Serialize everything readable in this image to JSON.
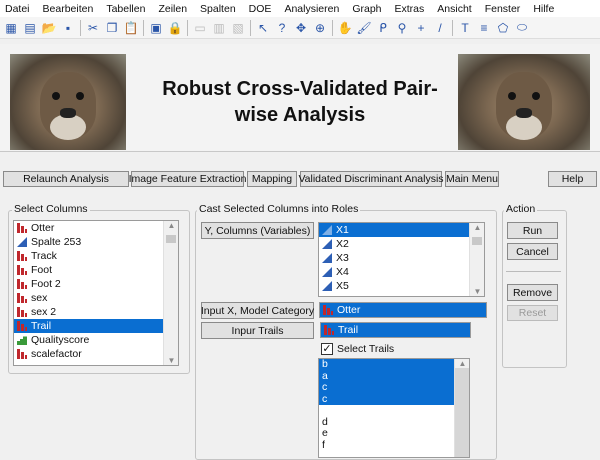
{
  "menu": [
    "Datei",
    "Bearbeiten",
    "Tabellen",
    "Zeilen",
    "Spalten",
    "DOE",
    "Analysieren",
    "Graph",
    "Extras",
    "Ansicht",
    "Fenster",
    "Hilfe"
  ],
  "toolbar_icons": [
    "new-table-icon",
    "new-script-icon",
    "open-icon",
    "save-icon",
    "cut-icon",
    "copy-icon",
    "paste-icon",
    "formula-icon",
    "lock-icon",
    "row-icon",
    "column-icon",
    "filter-icon",
    "arrow-icon",
    "help-icon",
    "crosshair-icon",
    "target-icon",
    "hand-icon",
    "brush-icon",
    "lasso-icon",
    "magnifier-icon",
    "plus-icon",
    "line-icon",
    "textbox-icon",
    "lines-icon",
    "polygon-icon",
    "ellipse-icon"
  ],
  "banner": {
    "title": "Robust Cross-Validated Pair-wise Analysis"
  },
  "nav_buttons": [
    "Relaunch Analysis",
    "Image Feature Extraction",
    "Mapping",
    "Validated Discriminant Analysis",
    "Main Menu"
  ],
  "help": "Help",
  "select_columns": {
    "label": "Select Columns",
    "items": [
      {
        "name": "Otter",
        "type": "nominal"
      },
      {
        "name": "Spalte 253",
        "type": "continuous"
      },
      {
        "name": "Track",
        "type": "nominal"
      },
      {
        "name": "Foot",
        "type": "nominal"
      },
      {
        "name": "Foot 2",
        "type": "nominal"
      },
      {
        "name": "sex",
        "type": "nominal"
      },
      {
        "name": "sex 2",
        "type": "nominal"
      },
      {
        "name": "Trail",
        "type": "nominal",
        "selected": true
      },
      {
        "name": "Qualityscore",
        "type": "ordinal"
      },
      {
        "name": "scalefactor",
        "type": "nominal"
      }
    ]
  },
  "roles": {
    "label": "Cast Selected Columns into Roles",
    "y_button": "Y, Columns (Variables)",
    "y_items": [
      {
        "name": "X1",
        "selected": true
      },
      {
        "name": "X2"
      },
      {
        "name": "X3"
      },
      {
        "name": "X4"
      },
      {
        "name": "X5"
      }
    ],
    "x_button": "Input X, Model Category",
    "x_value": "Otter",
    "trails_button": "Inpur Trails",
    "trails_value": "Trail",
    "select_trails_label": "Select Trails",
    "select_trails_checked": true,
    "trail_items": [
      {
        "name": "b",
        "selected": true
      },
      {
        "name": "a",
        "selected": true
      },
      {
        "name": " c",
        "selected": true
      },
      {
        "name": "c",
        "selected": true
      },
      {
        "name": ""
      },
      {
        "name": "d"
      },
      {
        "name": "e"
      },
      {
        "name": "f"
      }
    ]
  },
  "action": {
    "label": "Action",
    "run": "Run",
    "cancel": "Cancel",
    "remove": "Remove",
    "reset": "Reset"
  }
}
